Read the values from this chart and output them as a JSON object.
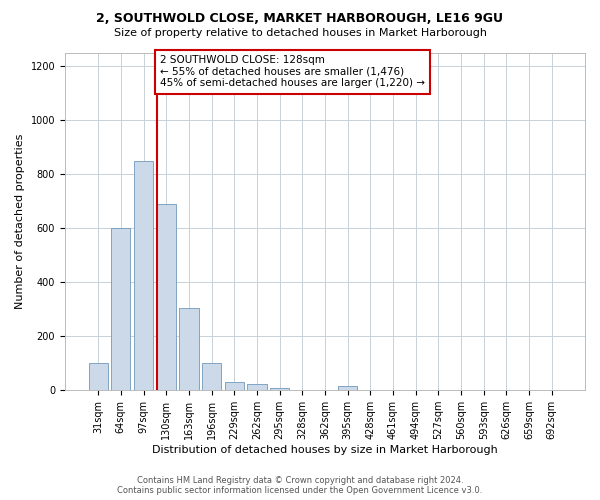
{
  "title": "2, SOUTHWOLD CLOSE, MARKET HARBOROUGH, LE16 9GU",
  "subtitle": "Size of property relative to detached houses in Market Harborough",
  "xlabel": "Distribution of detached houses by size in Market Harborough",
  "ylabel": "Number of detached properties",
  "bar_labels": [
    "31sqm",
    "64sqm",
    "97sqm",
    "130sqm",
    "163sqm",
    "196sqm",
    "229sqm",
    "262sqm",
    "295sqm",
    "328sqm",
    "362sqm",
    "395sqm",
    "428sqm",
    "461sqm",
    "494sqm",
    "527sqm",
    "560sqm",
    "593sqm",
    "626sqm",
    "659sqm",
    "692sqm"
  ],
  "bar_values": [
    100,
    600,
    850,
    690,
    305,
    100,
    30,
    22,
    10,
    0,
    0,
    15,
    0,
    0,
    0,
    0,
    0,
    0,
    0,
    0,
    0
  ],
  "bar_color": "#ccd9e8",
  "bar_edge_color": "#7099bb",
  "vline_x_index": 3,
  "vline_color": "#cc0000",
  "ylim": [
    0,
    1250
  ],
  "yticks": [
    0,
    200,
    400,
    600,
    800,
    1000,
    1200
  ],
  "annotation_text": "2 SOUTHWOLD CLOSE: 128sqm\n← 55% of detached houses are smaller (1,476)\n45% of semi-detached houses are larger (1,220) →",
  "annotation_box_color": "#cc0000",
  "footer_line1": "Contains HM Land Registry data © Crown copyright and database right 2024.",
  "footer_line2": "Contains public sector information licensed under the Open Government Licence v3.0.",
  "bg_color": "#ffffff",
  "grid_color": "#c8d0d8",
  "title_fontsize": 9,
  "subtitle_fontsize": 8,
  "xlabel_fontsize": 8,
  "ylabel_fontsize": 8,
  "tick_fontsize": 7,
  "footer_fontsize": 6,
  "ann_fontsize": 7.5
}
